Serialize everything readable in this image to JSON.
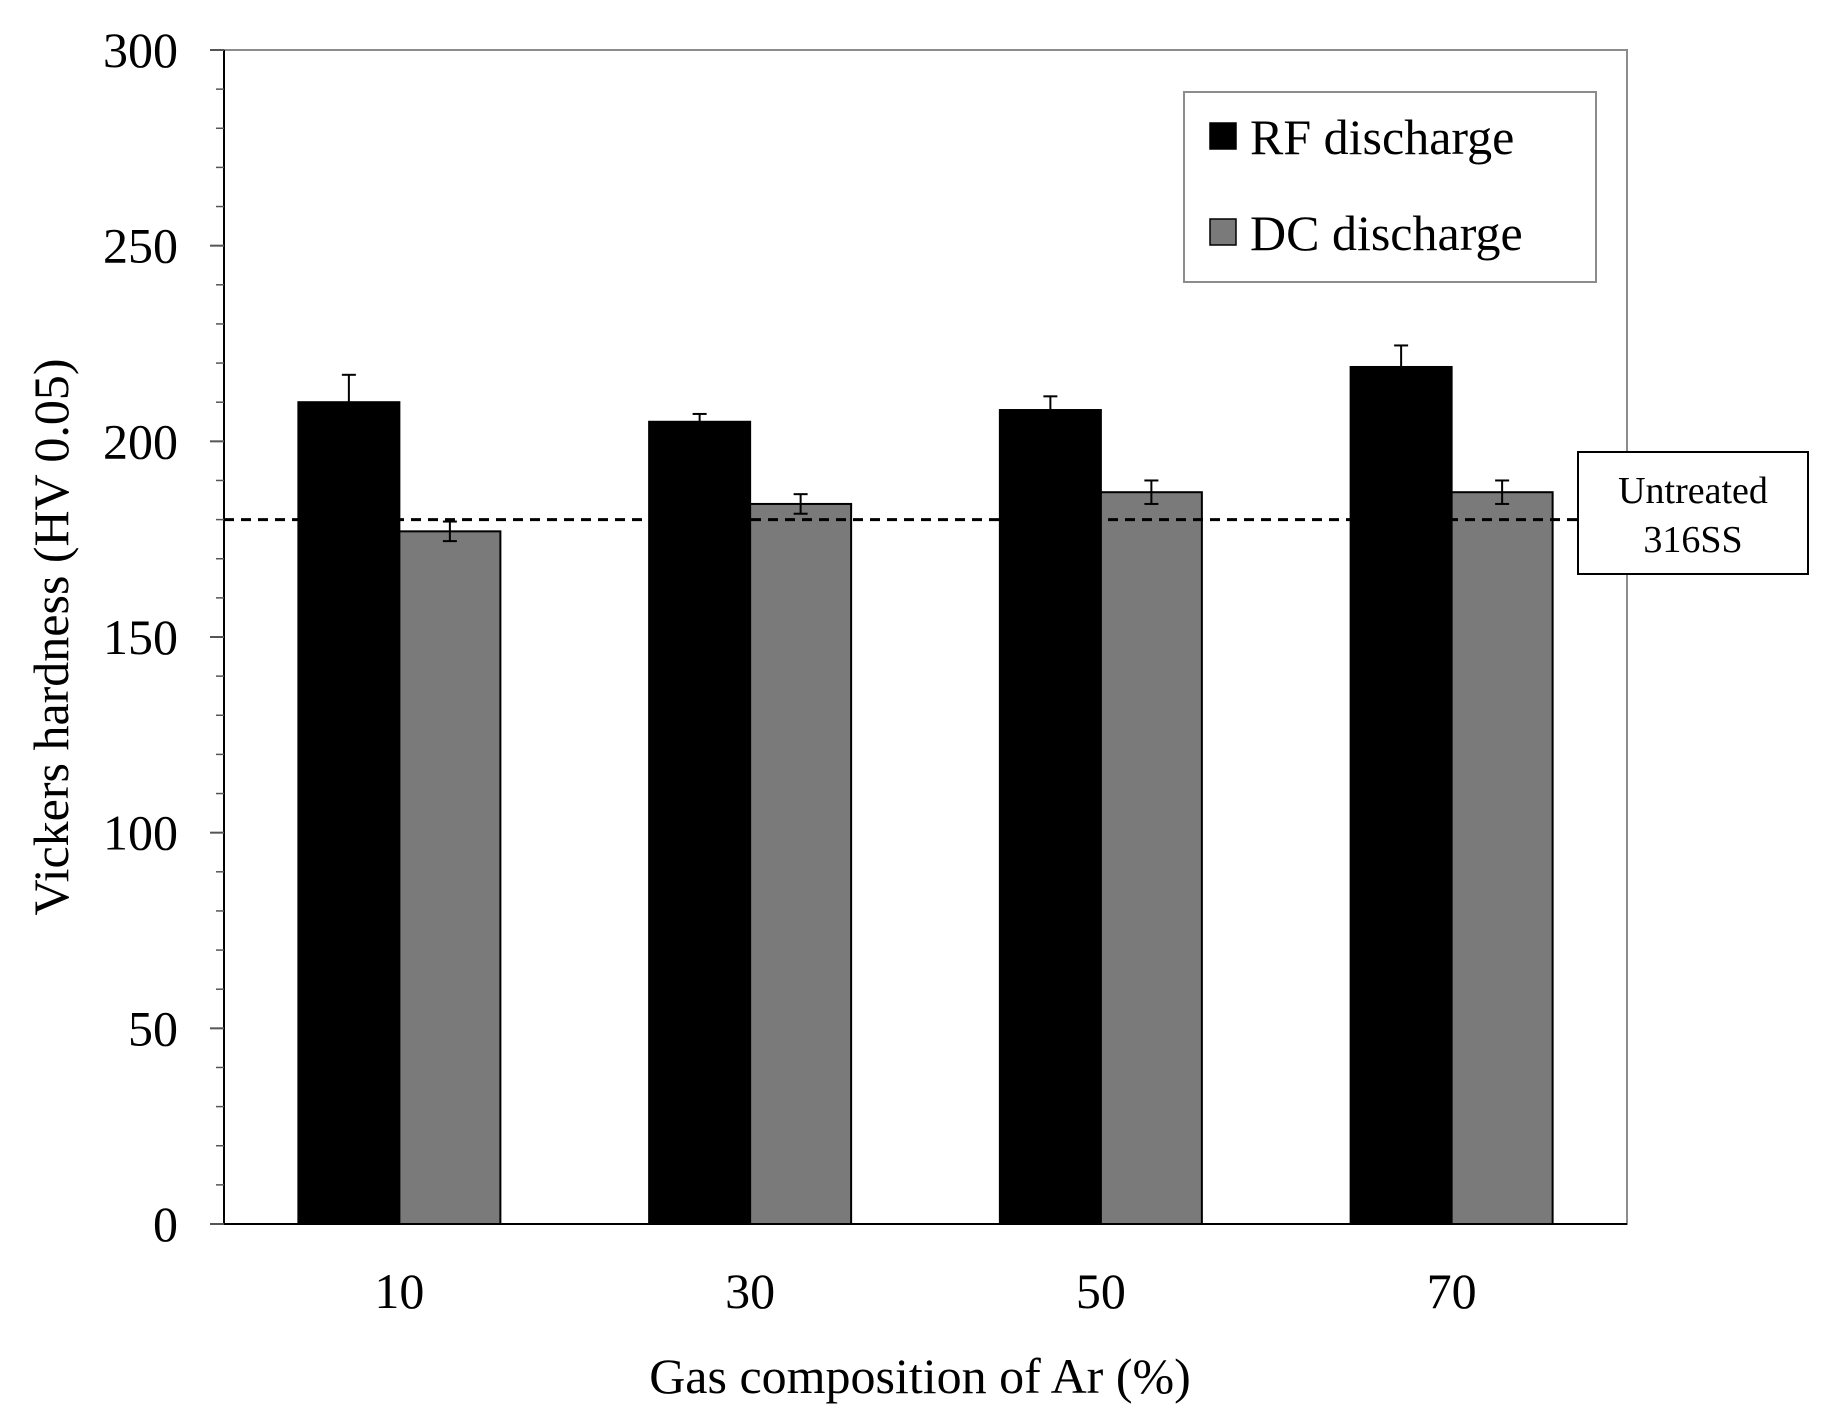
{
  "chart_data": {
    "type": "bar",
    "title": "",
    "xlabel": "Gas composition of Ar (%)",
    "ylabel": "Vickers hardness (HV 0.05)",
    "ylim": [
      0,
      300
    ],
    "yticks": [
      0,
      50,
      100,
      150,
      200,
      250,
      300
    ],
    "categories": [
      "10",
      "30",
      "50",
      "70"
    ],
    "series": [
      {
        "name": "RF discharge",
        "color": "#000000",
        "values": [
          210,
          205,
          208,
          219
        ],
        "errors": [
          7,
          2,
          3.5,
          5.5
        ]
      },
      {
        "name": "DC discharge",
        "color": "#7a7a7a",
        "values": [
          177,
          184,
          187,
          187
        ],
        "errors": [
          2.5,
          2.5,
          3,
          3
        ]
      }
    ],
    "reference_line": {
      "value": 180,
      "style": "dashed",
      "label_lines": [
        "Untreated",
        "316SS"
      ]
    },
    "legend": {
      "position": "top-right"
    },
    "grid": false
  }
}
